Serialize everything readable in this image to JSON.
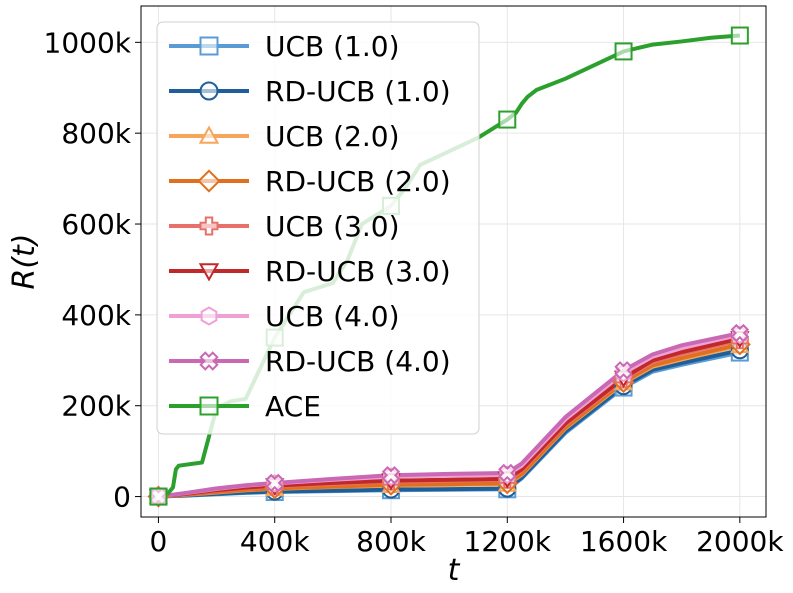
{
  "chart_data": {
    "type": "line",
    "title": "",
    "xlabel": "t",
    "ylabel": "R(t)",
    "xlim": [
      -60000,
      2090000
    ],
    "ylim": [
      -45000,
      1080000
    ],
    "x_ticks": [
      {
        "value": 0,
        "label": "0"
      },
      {
        "value": 400000,
        "label": "400k"
      },
      {
        "value": 800000,
        "label": "800k"
      },
      {
        "value": 1200000,
        "label": "1200k"
      },
      {
        "value": 1600000,
        "label": "1600k"
      },
      {
        "value": 2000000,
        "label": "2000k"
      }
    ],
    "y_ticks": [
      {
        "value": 0,
        "label": "0"
      },
      {
        "value": 200000,
        "label": "200k"
      },
      {
        "value": 400000,
        "label": "400k"
      },
      {
        "value": 600000,
        "label": "600k"
      },
      {
        "value": 800000,
        "label": "800k"
      },
      {
        "value": 1000000,
        "label": "1000k"
      }
    ],
    "grid": true,
    "legend_position": "top-left",
    "marker_x": [
      0,
      400000,
      800000,
      1200000,
      1600000,
      2000000
    ],
    "series": [
      {
        "name": "UCB (1.0)",
        "color": "#5b9bd5",
        "marker": "square",
        "x": [
          0,
          100000,
          200000,
          300000,
          400000,
          600000,
          800000,
          1000000,
          1200000,
          1250000,
          1400000,
          1600000,
          1700000,
          1800000,
          2000000
        ],
        "y": [
          0,
          2000,
          5000,
          8000,
          10000,
          12000,
          14000,
          15000,
          16000,
          40000,
          140000,
          240000,
          275000,
          290000,
          317000
        ]
      },
      {
        "name": "RD-UCB (1.0)",
        "color": "#1f5f99",
        "marker": "circle",
        "x": [
          0,
          100000,
          200000,
          300000,
          400000,
          600000,
          800000,
          1000000,
          1200000,
          1250000,
          1400000,
          1600000,
          1700000,
          1800000,
          2000000
        ],
        "y": [
          0,
          2500,
          6000,
          9000,
          11000,
          13000,
          15500,
          16500,
          17500,
          42000,
          143000,
          243000,
          279000,
          294000,
          322000
        ]
      },
      {
        "name": "UCB (2.0)",
        "color": "#f5a65b",
        "marker": "triangle-up",
        "x": [
          0,
          100000,
          200000,
          300000,
          400000,
          600000,
          800000,
          1000000,
          1200000,
          1250000,
          1400000,
          1600000,
          1700000,
          1800000,
          2000000
        ],
        "y": [
          0,
          4000,
          9000,
          14000,
          17000,
          21000,
          24000,
          25500,
          27000,
          48000,
          150000,
          250000,
          286000,
          302000,
          332000
        ]
      },
      {
        "name": "RD-UCB (2.0)",
        "color": "#e07020",
        "marker": "diamond",
        "x": [
          0,
          100000,
          200000,
          300000,
          400000,
          600000,
          800000,
          1000000,
          1200000,
          1250000,
          1400000,
          1600000,
          1700000,
          1800000,
          2000000
        ],
        "y": [
          0,
          4500,
          10000,
          15000,
          18000,
          22000,
          26000,
          27500,
          29000,
          50000,
          152000,
          252000,
          289000,
          305000,
          335000
        ]
      },
      {
        "name": "UCB (3.0)",
        "color": "#e8706a",
        "marker": "plus",
        "x": [
          0,
          100000,
          200000,
          300000,
          400000,
          600000,
          800000,
          1000000,
          1200000,
          1250000,
          1400000,
          1600000,
          1700000,
          1800000,
          2000000
        ],
        "y": [
          0,
          6000,
          13000,
          19000,
          23000,
          28000,
          33000,
          35000,
          37000,
          57000,
          158000,
          258000,
          296000,
          314000,
          344000
        ]
      },
      {
        "name": "RD-UCB (3.0)",
        "color": "#c0282a",
        "marker": "triangle-down",
        "x": [
          0,
          100000,
          200000,
          300000,
          400000,
          600000,
          800000,
          1000000,
          1200000,
          1250000,
          1400000,
          1600000,
          1700000,
          1800000,
          2000000
        ],
        "y": [
          0,
          6500,
          14000,
          20000,
          24000,
          30000,
          35000,
          37000,
          39000,
          60000,
          161000,
          261000,
          300000,
          318000,
          348000
        ]
      },
      {
        "name": "UCB (4.0)",
        "color": "#f0a0d4",
        "marker": "hexagon",
        "x": [
          0,
          100000,
          200000,
          300000,
          400000,
          600000,
          800000,
          1000000,
          1200000,
          1250000,
          1400000,
          1600000,
          1700000,
          1800000,
          2000000
        ],
        "y": [
          0,
          8000,
          17000,
          24000,
          29000,
          37000,
          44000,
          46000,
          48000,
          68000,
          170000,
          272000,
          308000,
          327000,
          356000
        ]
      },
      {
        "name": "RD-UCB (4.0)",
        "color": "#c968b4",
        "marker": "x",
        "x": [
          0,
          100000,
          200000,
          300000,
          400000,
          600000,
          800000,
          1000000,
          1200000,
          1250000,
          1400000,
          1600000,
          1700000,
          1800000,
          2000000
        ],
        "y": [
          0,
          8500,
          18000,
          25000,
          30000,
          39000,
          47000,
          50000,
          52000,
          73000,
          175000,
          278000,
          313000,
          333000,
          360000
        ]
      },
      {
        "name": "ACE",
        "color": "#2ca02c",
        "marker": "square",
        "x": [
          0,
          30000,
          50000,
          60000,
          70000,
          150000,
          200000,
          250000,
          300000,
          400000,
          450000,
          500000,
          550000,
          600000,
          650000,
          700000,
          800000,
          850000,
          900000,
          1000000,
          1100000,
          1200000,
          1230000,
          1250000,
          1270000,
          1300000,
          1400000,
          1500000,
          1600000,
          1700000,
          1800000,
          1900000,
          2000000
        ],
        "y": [
          0,
          5000,
          20000,
          60000,
          68000,
          75000,
          195000,
          210000,
          215000,
          350000,
          400000,
          450000,
          460000,
          470000,
          520000,
          600000,
          640000,
          680000,
          730000,
          760000,
          790000,
          830000,
          845000,
          865000,
          880000,
          895000,
          920000,
          950000,
          980000,
          995000,
          1002000,
          1010000,
          1015000
        ]
      }
    ]
  }
}
